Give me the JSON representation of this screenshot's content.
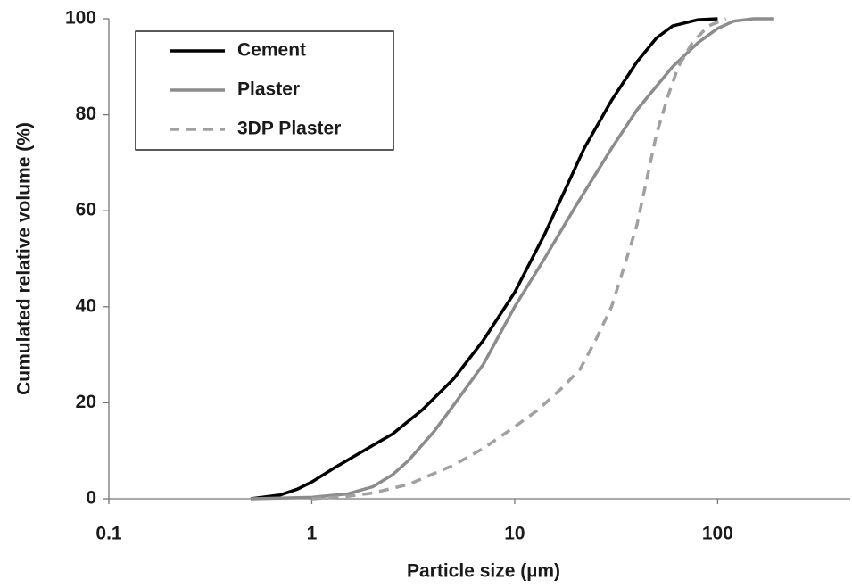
{
  "chart_data": {
    "type": "line",
    "xlabel": "Particle size (µm)",
    "ylabel": "Cumulated relative volume (%)",
    "xscale": "log",
    "xlim": [
      0.1,
      450
    ],
    "ylim": [
      0,
      100
    ],
    "xticks": [
      0.1,
      1,
      10,
      100
    ],
    "yticks": [
      0,
      20,
      40,
      60,
      80,
      100
    ],
    "grid": false,
    "legend": "upper left",
    "series": [
      {
        "name": "Cement",
        "color": "#000000",
        "dash": "solid",
        "x": [
          0.5,
          0.7,
          0.85,
          1,
          1.3,
          1.8,
          2.5,
          3.5,
          5,
          7,
          10,
          14,
          18,
          22,
          30,
          40,
          50,
          60,
          80,
          100
        ],
        "values": [
          0,
          0.8,
          2,
          3.5,
          6.5,
          10,
          13.5,
          18.5,
          25,
          33,
          43,
          55,
          65,
          73,
          83,
          91,
          96,
          98.5,
          99.8,
          100
        ]
      },
      {
        "name": "Plaster",
        "color": "#8c8c8c",
        "dash": "solid",
        "x": [
          0.5,
          1,
          1.5,
          2,
          2.5,
          3,
          4,
          5,
          7,
          10,
          14,
          20,
          30,
          40,
          60,
          80,
          100,
          120,
          150,
          190
        ],
        "values": [
          0,
          0.3,
          1,
          2.5,
          5,
          8,
          14,
          19.5,
          28,
          40,
          50,
          61,
          73,
          81,
          90,
          95,
          98,
          99.5,
          100,
          100
        ]
      },
      {
        "name": "3DP Plaster",
        "color": "#a0a0a0",
        "dash": "dashed",
        "x": [
          1,
          1.5,
          2,
          3,
          5,
          7,
          10,
          13,
          17,
          21,
          25,
          30,
          35,
          40,
          45,
          50,
          57,
          64,
          75,
          90,
          110
        ],
        "values": [
          0,
          0.5,
          1.2,
          3,
          7,
          10.5,
          15,
          18.5,
          23,
          27,
          33,
          40,
          49,
          57,
          67,
          76,
          84,
          90,
          95,
          98.5,
          100
        ]
      }
    ]
  }
}
